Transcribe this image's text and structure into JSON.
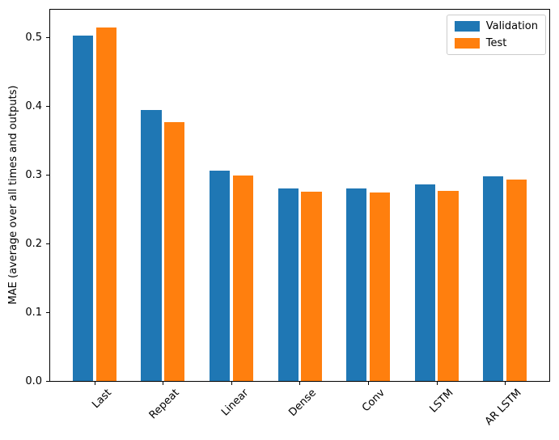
{
  "chart_data": {
    "type": "bar",
    "title": "",
    "xlabel": "",
    "ylabel": "MAE (average over all times and outputs)",
    "categories": [
      "Last",
      "Repeat",
      "Linear",
      "Dense",
      "Conv",
      "LSTM",
      "AR LSTM"
    ],
    "series": [
      {
        "name": "Validation",
        "color": "#1f77b4",
        "values": [
          0.503,
          0.395,
          0.306,
          0.281,
          0.281,
          0.287,
          0.298
        ]
      },
      {
        "name": "Test",
        "color": "#ff7f0e",
        "values": [
          0.515,
          0.377,
          0.3,
          0.276,
          0.275,
          0.277,
          0.293
        ]
      }
    ],
    "ylim": [
      0,
      0.541
    ],
    "yticks": [
      0.0,
      0.1,
      0.2,
      0.3,
      0.4,
      0.5
    ],
    "ytick_format_decimals": 1,
    "xlim": [
      -0.65,
      6.65
    ],
    "bar_width": 0.3,
    "bar_offset": 0.17,
    "xtick_rotation": 45,
    "grid": false,
    "legend_position": "upper right"
  }
}
